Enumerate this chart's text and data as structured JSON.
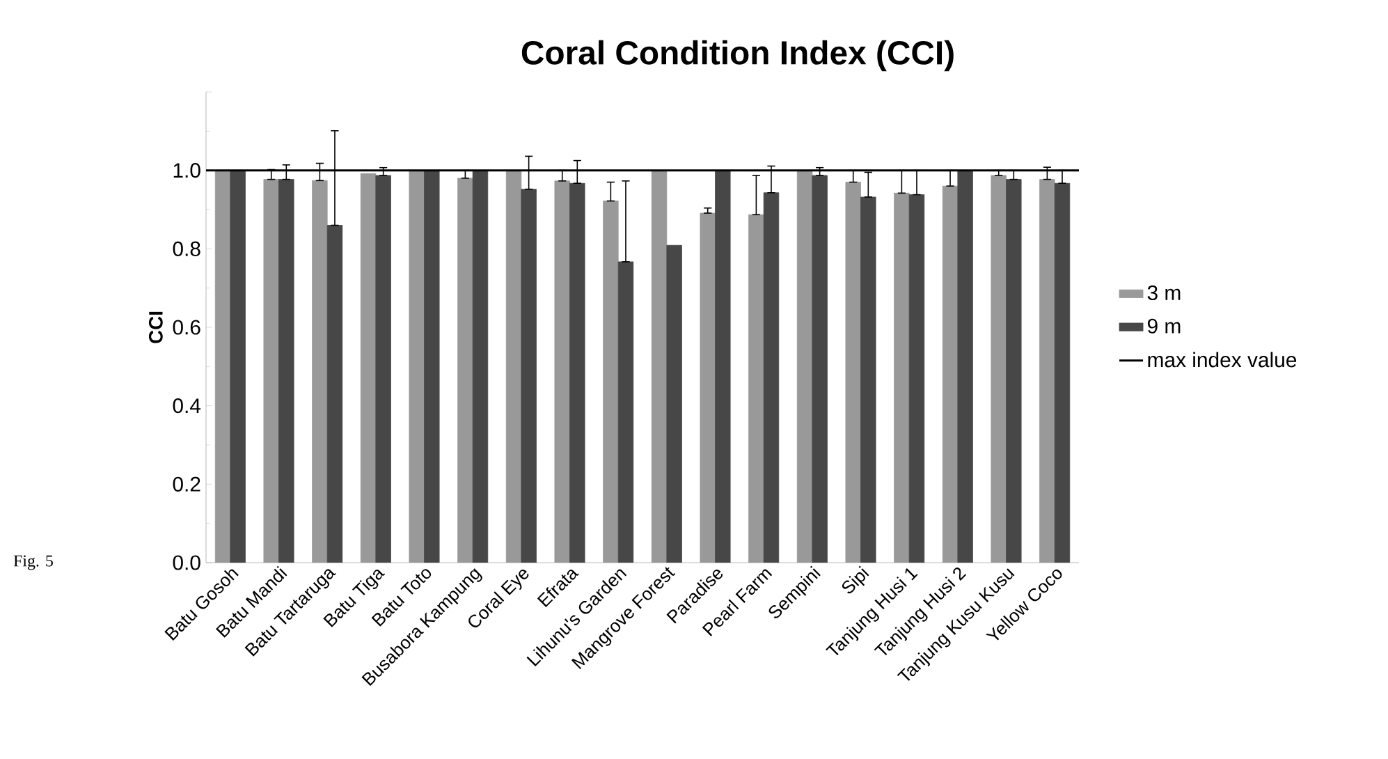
{
  "chart_data": {
    "type": "bar",
    "title": "Coral Condition Index (CCI)",
    "ylabel": "CCI",
    "categories": [
      "Batu Gosoh",
      "Batu Mandi",
      "Batu Tartaruga",
      "Batu Tiga",
      "Batu Toto",
      "Busabora Kampung",
      "Coral Eye",
      "Efrata",
      "Lihunu's Garden",
      "Mangrove Forest",
      "Paradise",
      "Pearl Farm",
      "Sempini",
      "Sipi",
      "Tanjung Husi 1",
      "Tanjung Husi 2",
      "Tanjung Kusu Kusu",
      "Yellow Coco"
    ],
    "series": [
      {
        "name": "3 m",
        "color": "#999999",
        "values": [
          1.0,
          0.977,
          0.974,
          0.992,
          1.0,
          0.98,
          1.0,
          0.973,
          0.922,
          1.0,
          0.891,
          0.887,
          1.0,
          0.97,
          0.942,
          0.96,
          0.987,
          0.977
        ],
        "errors": [
          null,
          [
            0.977,
            1.002
          ],
          [
            0.974,
            1.018
          ],
          null,
          null,
          [
            0.98,
            1.0
          ],
          null,
          [
            0.973,
            1.0
          ],
          [
            0.922,
            0.97
          ],
          null,
          [
            0.891,
            0.904
          ],
          [
            0.887,
            0.987
          ],
          null,
          [
            0.97,
            1.0
          ],
          [
            0.942,
            1.0
          ],
          [
            0.96,
            1.0
          ],
          [
            0.987,
            1.0
          ],
          [
            0.977,
            1.008
          ]
        ]
      },
      {
        "name": "9 m",
        "color": "#474747",
        "values": [
          1.0,
          0.977,
          0.86,
          0.987,
          1.0,
          1.0,
          0.952,
          0.967,
          0.767,
          0.809,
          1.0,
          0.943,
          0.987,
          0.932,
          0.938,
          1.0,
          0.977,
          0.967
        ],
        "errors": [
          null,
          [
            0.977,
            1.014
          ],
          [
            0.86,
            1.101
          ],
          [
            0.987,
            1.007
          ],
          null,
          null,
          [
            0.952,
            1.036
          ],
          [
            0.967,
            1.025
          ],
          [
            0.767,
            0.973
          ],
          null,
          null,
          [
            0.943,
            1.011
          ],
          [
            0.987,
            1.007
          ],
          [
            0.932,
            0.995
          ],
          [
            0.938,
            1.0
          ],
          null,
          [
            0.977,
            1.0
          ],
          [
            0.967,
            1.0
          ]
        ]
      }
    ],
    "ylim": [
      0,
      1.2
    ],
    "yticks": [
      {
        "value": 0,
        "label": "0.0"
      },
      {
        "value": 0.2,
        "label": "0.2"
      },
      {
        "value": 0.4,
        "label": "0.4"
      },
      {
        "value": 0.6,
        "label": "0.6"
      },
      {
        "value": 0.8,
        "label": "0.8"
      },
      {
        "value": 1.0,
        "label": "1.0"
      },
      {
        "value": 1.2,
        "label": null
      }
    ],
    "ref_lines": [
      {
        "axis": "y",
        "value": 1.0,
        "label": "max index value",
        "color": "#000000"
      }
    ],
    "legend": "right",
    "annotations": [
      "Fig. 5"
    ]
  }
}
